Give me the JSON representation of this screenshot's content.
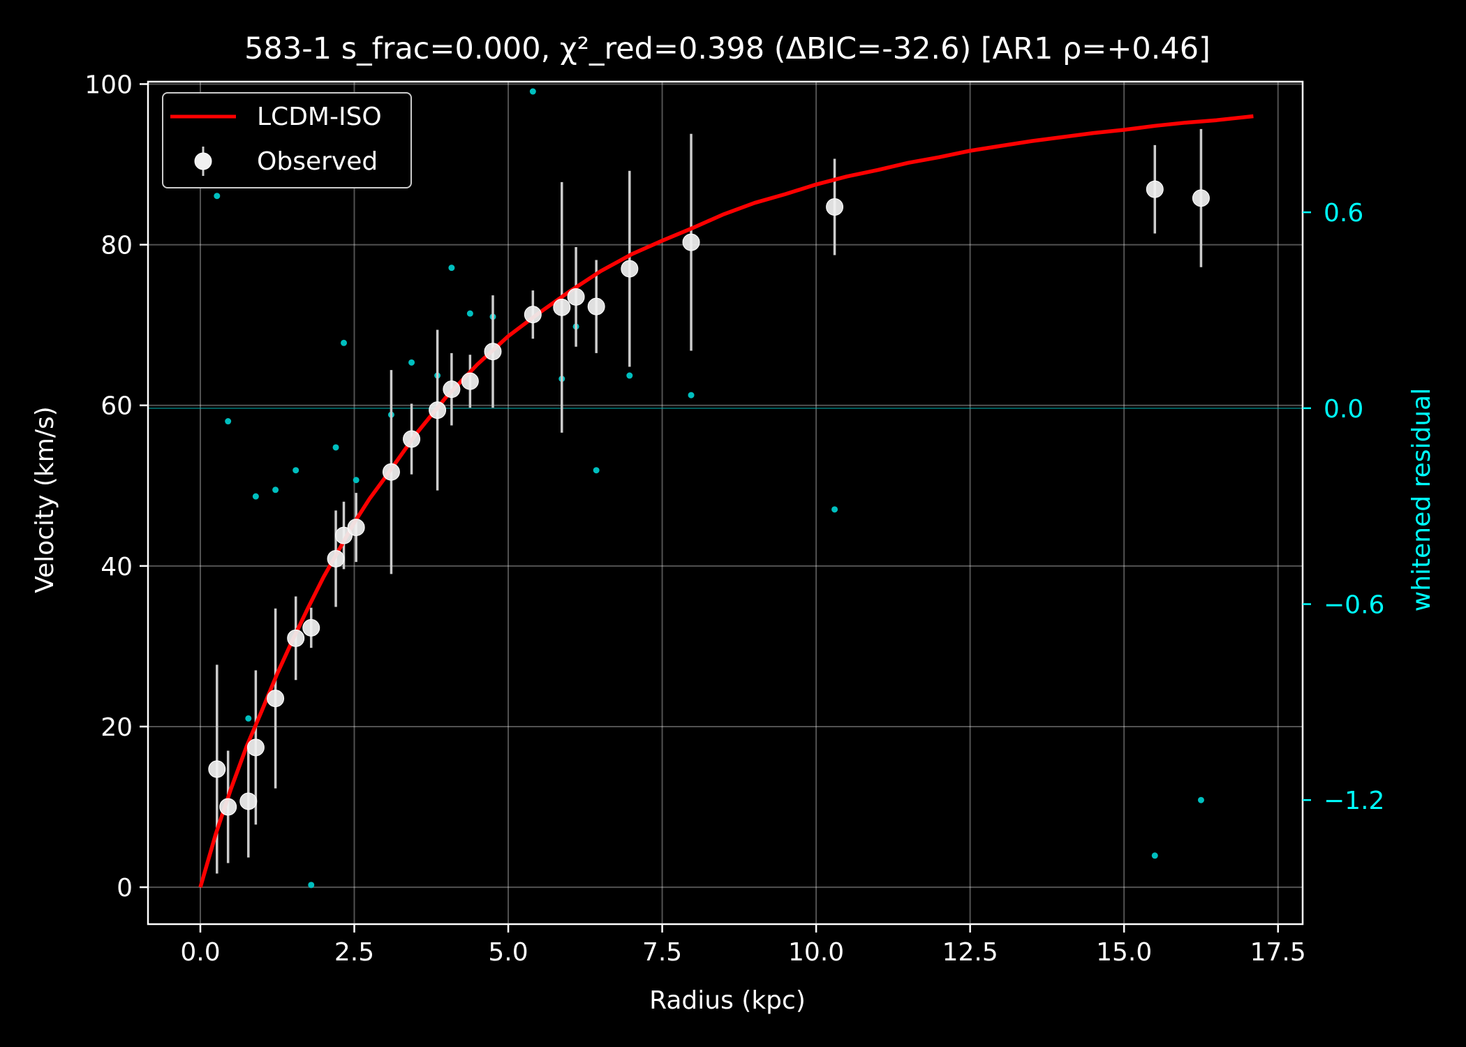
{
  "chart_data": {
    "type": "scatter",
    "title": "583-1  s_frac=0.000, χ²_red=0.398  (ΔBIC=-32.6) [AR1 ρ=+0.46]",
    "xlabel": "Radius (kpc)",
    "ylabel": "Velocity (km/s)",
    "y2label": "whitened residual",
    "xlim": [
      -0.85,
      17.9
    ],
    "ylim": [
      -4.6,
      100.3
    ],
    "y2lim": [
      -1.58,
      1.0
    ],
    "x_ticks": [
      0.0,
      2.5,
      5.0,
      7.5,
      10.0,
      12.5,
      15.0,
      17.5
    ],
    "x_tick_labels": [
      "0.0",
      "2.5",
      "5.0",
      "7.5",
      "10.0",
      "12.5",
      "15.0",
      "17.5"
    ],
    "y_ticks": [
      0,
      20,
      40,
      60,
      80,
      100
    ],
    "y_tick_labels": [
      "0",
      "20",
      "40",
      "60",
      "80",
      "100"
    ],
    "y2_ticks": [
      0.6,
      0.0,
      -0.6,
      -1.2
    ],
    "y2_tick_labels": [
      "0.6",
      "0.0",
      "−0.6",
      "−1.2"
    ],
    "grid": true,
    "legend_position": "top-left",
    "colors": {
      "background": "#000000",
      "axis": "#ffffff",
      "model": "#ff0000",
      "observed": "#f0f0f0",
      "errorbar": "#cccccc",
      "residual": "#00bfbf",
      "residual_axis": "#00ffff"
    },
    "series": [
      {
        "name": "LCDM-ISO",
        "kind": "line",
        "x": [
          0.0,
          0.25,
          0.5,
          0.75,
          1.0,
          1.25,
          1.5,
          1.75,
          2.0,
          2.25,
          2.5,
          2.75,
          3.0,
          3.5,
          4.0,
          4.5,
          5.0,
          5.5,
          6.0,
          6.5,
          7.0,
          7.5,
          8.0,
          8.5,
          9.0,
          9.5,
          10.0,
          10.5,
          11.0,
          11.5,
          12.0,
          12.5,
          13.0,
          13.5,
          14.0,
          14.5,
          15.0,
          15.5,
          16.0,
          16.5,
          17.1
        ],
        "y": [
          0.0,
          6.6,
          12.3,
          17.5,
          22.0,
          26.6,
          30.8,
          34.8,
          38.6,
          42.0,
          45.4,
          48.4,
          51.0,
          56.4,
          61.1,
          65.1,
          68.6,
          71.5,
          74.2,
          76.7,
          78.8,
          80.5,
          82.1,
          83.8,
          85.2,
          86.3,
          87.5,
          88.5,
          89.3,
          90.2,
          90.9,
          91.7,
          92.3,
          92.9,
          93.4,
          93.9,
          94.3,
          94.8,
          95.2,
          95.5,
          96.0
        ]
      },
      {
        "name": "Observed",
        "kind": "errorbar",
        "x": [
          0.27,
          0.45,
          0.78,
          0.9,
          1.22,
          1.55,
          1.8,
          2.2,
          2.33,
          2.53,
          3.1,
          3.43,
          3.85,
          4.08,
          4.38,
          4.75,
          5.4,
          5.87,
          6.1,
          6.43,
          6.97,
          7.97,
          10.3,
          15.5,
          16.25
        ],
        "y": [
          14.7,
          10.0,
          10.7,
          17.4,
          23.5,
          31.0,
          32.3,
          40.9,
          43.8,
          44.8,
          51.7,
          55.8,
          59.4,
          62.0,
          63.0,
          66.7,
          71.3,
          72.2,
          73.5,
          72.3,
          77.0,
          80.3,
          84.7,
          86.9,
          85.8
        ],
        "yerr": [
          13.0,
          7.0,
          7.0,
          9.6,
          11.2,
          5.2,
          2.5,
          6.0,
          4.2,
          4.3,
          12.7,
          4.4,
          10.0,
          4.5,
          3.3,
          7.0,
          3.0,
          15.6,
          6.2,
          5.8,
          12.2,
          13.5,
          6.0,
          5.5,
          8.6
        ]
      },
      {
        "name": "whitened residual",
        "kind": "scatter",
        "axis": "y2",
        "x": [
          0.27,
          0.45,
          0.78,
          0.9,
          1.22,
          1.55,
          1.8,
          2.2,
          2.33,
          2.53,
          3.1,
          3.43,
          3.85,
          4.08,
          4.38,
          4.75,
          5.4,
          5.87,
          6.1,
          6.43,
          6.97,
          7.97,
          10.3,
          15.5,
          16.25
        ],
        "y": [
          0.65,
          -0.04,
          -0.95,
          -0.27,
          -0.25,
          -0.19,
          -1.46,
          -0.12,
          0.2,
          -0.22,
          -0.02,
          0.14,
          0.1,
          0.43,
          0.29,
          0.28,
          0.97,
          0.09,
          0.25,
          -0.19,
          0.1,
          0.04,
          -0.31,
          -1.37,
          -1.2
        ]
      }
    ]
  }
}
